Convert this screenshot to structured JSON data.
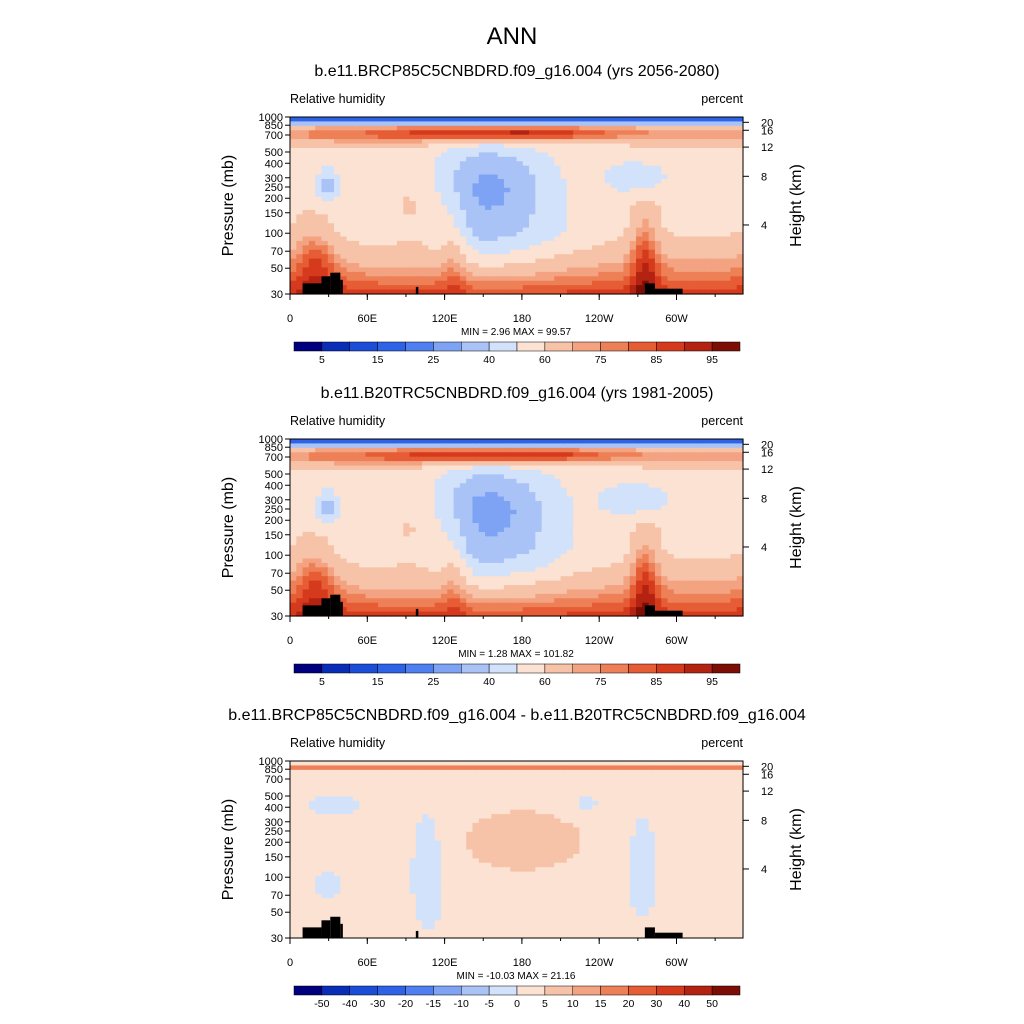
{
  "figure_title": "ANN",
  "chart_data": [
    {
      "type": "heatmap",
      "title": "b.e11.BRCP85C5CNBDRD.f09_g16.004 (yrs 2056-2080)",
      "left_label": "Relative humidity",
      "right_label": "percent",
      "ylabel": "Pressure (mb)",
      "y2label": "Height (km)",
      "x_ticks": [
        "0",
        "60E",
        "120E",
        "180",
        "120W",
        "60W"
      ],
      "x_range_deg_east": [
        0,
        360
      ],
      "y_ticks": [
        "1000",
        "850",
        "700",
        "500",
        "400",
        "300",
        "250",
        "200",
        "150",
        "100",
        "70",
        "50",
        "30"
      ],
      "y_range_mb": [
        1000,
        30
      ],
      "y2_ticks": [
        "4",
        "8",
        "12",
        "16",
        "20"
      ],
      "stats": "MIN =   2.96  MAX =  99.57",
      "min": 2.96,
      "max": 99.57,
      "colorbar_levels": [
        "5",
        "10",
        "15",
        "20",
        "25",
        "30",
        "40",
        "50",
        "60",
        "70",
        "75",
        "80",
        "85",
        "90",
        "95"
      ],
      "colorbar_labels": [
        "5",
        "15",
        "25",
        "40",
        "60",
        "75",
        "85",
        "95"
      ],
      "colors": [
        "#00007f",
        "#0a2db8",
        "#1a4ed8",
        "#2e63e8",
        "#4f7ff0",
        "#7ea3f4",
        "#aac3f7",
        "#d3e2fb",
        "#fbe2d2",
        "#f7c3a8",
        "#f3a381",
        "#ee8057",
        "#e65c34",
        "#d63a1c",
        "#b42212",
        "#7d0e06"
      ]
    },
    {
      "type": "heatmap",
      "title": "b.e11.B20TRC5CNBDRD.f09_g16.004 (yrs 1981-2005)",
      "left_label": "Relative humidity",
      "right_label": "percent",
      "ylabel": "Pressure (mb)",
      "y2label": "Height (km)",
      "x_ticks": [
        "0",
        "60E",
        "120E",
        "180",
        "120W",
        "60W"
      ],
      "x_range_deg_east": [
        0,
        360
      ],
      "y_ticks": [
        "1000",
        "850",
        "700",
        "500",
        "400",
        "300",
        "250",
        "200",
        "150",
        "100",
        "70",
        "50",
        "30"
      ],
      "y_range_mb": [
        1000,
        30
      ],
      "y2_ticks": [
        "4",
        "8",
        "12",
        "16",
        "20"
      ],
      "stats": "MIN =   1.28  MAX = 101.82",
      "min": 1.28,
      "max": 101.82,
      "colorbar_levels": [
        "5",
        "10",
        "15",
        "20",
        "25",
        "30",
        "40",
        "50",
        "60",
        "70",
        "75",
        "80",
        "85",
        "90",
        "95"
      ],
      "colorbar_labels": [
        "5",
        "15",
        "25",
        "40",
        "60",
        "75",
        "85",
        "95"
      ],
      "colors": [
        "#00007f",
        "#0a2db8",
        "#1a4ed8",
        "#2e63e8",
        "#4f7ff0",
        "#7ea3f4",
        "#aac3f7",
        "#d3e2fb",
        "#fbe2d2",
        "#f7c3a8",
        "#f3a381",
        "#ee8057",
        "#e65c34",
        "#d63a1c",
        "#b42212",
        "#7d0e06"
      ]
    },
    {
      "type": "heatmap",
      "title": "b.e11.BRCP85C5CNBDRD.f09_g16.004 - b.e11.B20TRC5CNBDRD.f09_g16.004",
      "left_label": "Relative humidity",
      "right_label": "percent",
      "ylabel": "Pressure (mb)",
      "y2label": "Height (km)",
      "x_ticks": [
        "0",
        "60E",
        "120E",
        "180",
        "120W",
        "60W"
      ],
      "x_range_deg_east": [
        0,
        360
      ],
      "y_ticks": [
        "1000",
        "850",
        "700",
        "500",
        "400",
        "300",
        "250",
        "200",
        "150",
        "100",
        "70",
        "50",
        "30"
      ],
      "y_range_mb": [
        1000,
        30
      ],
      "y2_ticks": [
        "4",
        "8",
        "12",
        "16",
        "20"
      ],
      "stats": "MIN = -10.03  MAX =  21.16",
      "min": -10.03,
      "max": 21.16,
      "colorbar_levels": [
        "-50",
        "-40",
        "-30",
        "-20",
        "-15",
        "-10",
        "-5",
        "0",
        "5",
        "10",
        "15",
        "20",
        "30",
        "40",
        "50"
      ],
      "colorbar_labels": [
        "-50",
        "-40",
        "-30",
        "-20",
        "-15",
        "-10",
        "-5",
        "0",
        "5",
        "10",
        "15",
        "20",
        "30",
        "40",
        "50"
      ],
      "colors": [
        "#00007f",
        "#0a2db8",
        "#1a4ed8",
        "#2e63e8",
        "#4f7ff0",
        "#7ea3f4",
        "#aac3f7",
        "#d3e2fb",
        "#fbe2d2",
        "#f7c3a8",
        "#f3a381",
        "#ee8057",
        "#e65c34",
        "#d63a1c",
        "#b42212",
        "#7d0e06"
      ]
    }
  ]
}
